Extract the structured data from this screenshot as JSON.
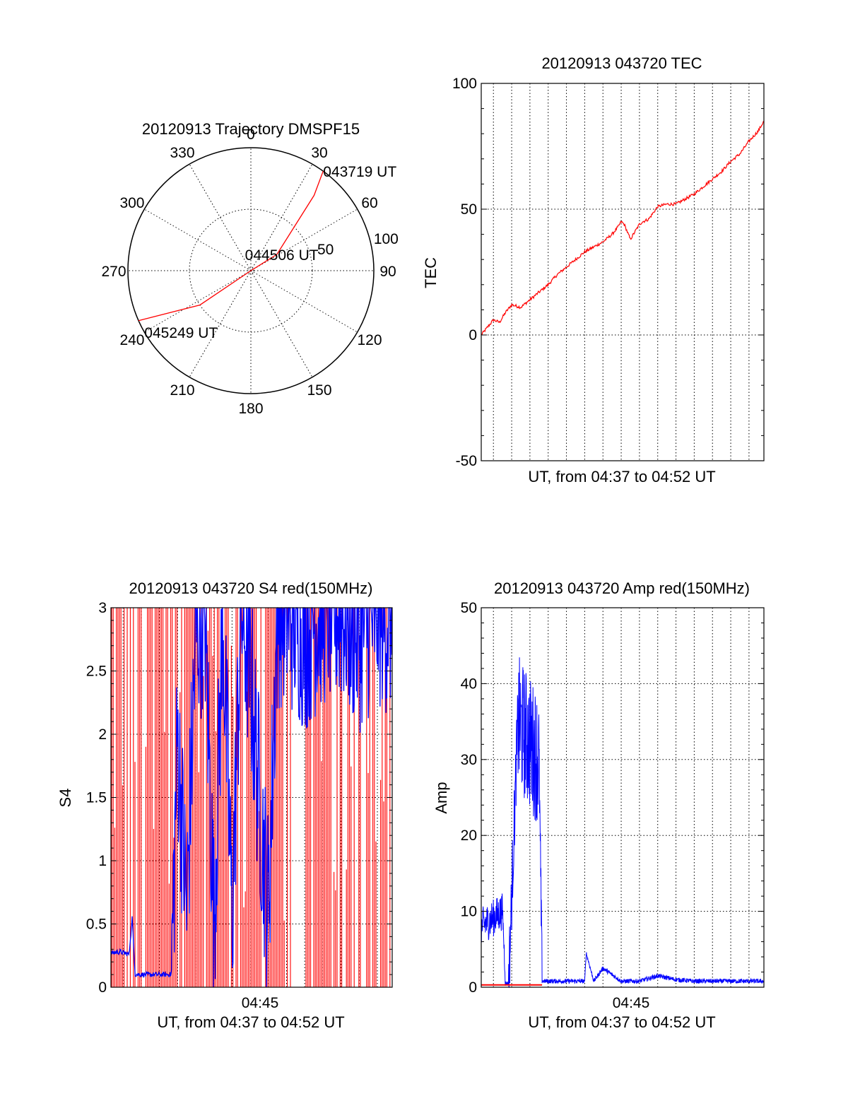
{
  "colors": {
    "red": "#ff0000",
    "blue": "#0000ff",
    "axis": "#000000",
    "grid": "#000000"
  },
  "chart_data": [
    {
      "type": "polar",
      "title": "20120913 Trajectory DMSPF15",
      "angle_ticks": [
        "0",
        "30",
        "60",
        "90",
        "120",
        "150",
        "180",
        "210",
        "240",
        "270",
        "300",
        "330"
      ],
      "radius_ticks": [
        "50",
        "100"
      ],
      "radius_max": 100,
      "grid": true,
      "series": [
        {
          "color": "red",
          "points": [
            [
              36,
              100
            ],
            [
              40,
              80
            ],
            [
              58,
              25
            ],
            [
              180,
              0
            ],
            [
              236,
              50
            ],
            [
              246,
              100
            ]
          ]
        }
      ],
      "annotations": [
        {
          "text": "043719 UT",
          "angle": 36,
          "radius": 100
        },
        {
          "text": "044506 UT",
          "angle": 340,
          "radius": 14
        },
        {
          "text": "045249 UT",
          "angle": 240,
          "radius": 100
        }
      ]
    },
    {
      "type": "line",
      "title": "20120913 043720 TEC",
      "xlabel": "UT, from 04:37 to 04:52 UT",
      "ylabel": "TEC",
      "xlim": [
        "04:37:20",
        "04:52:49"
      ],
      "ylim": [
        -50,
        100
      ],
      "yticks": [
        "100",
        "50",
        "0",
        "-50"
      ],
      "grid": true,
      "series": [
        {
          "color": "red",
          "x": [
            "04:37:20",
            "04:37:40",
            "04:38:00",
            "04:38:20",
            "04:38:40",
            "04:39:00",
            "04:39:30",
            "04:40:00",
            "04:40:30",
            "04:41:00",
            "04:41:30",
            "04:42:00",
            "04:42:30",
            "04:43:00",
            "04:43:30",
            "04:44:00",
            "04:44:30",
            "04:44:50",
            "04:45:00",
            "04:45:10",
            "04:45:30",
            "04:46:00",
            "04:46:10",
            "04:46:30",
            "04:47:00",
            "04:47:30",
            "04:48:00",
            "04:48:30",
            "04:49:00",
            "04:49:30",
            "04:50:00",
            "04:50:30",
            "04:51:00",
            "04:51:30",
            "04:52:00",
            "04:52:30",
            "04:52:49"
          ],
          "y": [
            0,
            3,
            6,
            5,
            9,
            12,
            11,
            14,
            17,
            20,
            24,
            27,
            30,
            33,
            35,
            37,
            40,
            43,
            45,
            44,
            38,
            44,
            45,
            46,
            51,
            52,
            52,
            54,
            56,
            59,
            62,
            65,
            69,
            72,
            77,
            81,
            85
          ]
        }
      ]
    },
    {
      "type": "line",
      "title": "20120913 043720 S4 red(150MHz)",
      "xlabel": "UT, from 04:37 to 04:52 UT",
      "ylabel": "S4",
      "xtick_label": "04:45",
      "xlim": [
        "04:37:20",
        "04:52:49"
      ],
      "ylim": [
        0,
        3
      ],
      "yticks": [
        "3",
        "2.5",
        "2",
        "1.5",
        "1",
        "0.5",
        "0"
      ],
      "grid": true,
      "series": [
        {
          "color": "red",
          "name": "",
          "style": "dense spikes 0–3 across full span, gaps near 04:46:30"
        },
        {
          "color": "blue",
          "x": [
            "04:37:20",
            "04:37:50",
            "04:38:20",
            "04:38:30",
            "04:38:40",
            "04:39:00",
            "04:40:00",
            "04:40:40",
            "04:41:00",
            "04:41:30",
            "04:42:00",
            "04:42:30",
            "04:43:00",
            "04:43:30",
            "04:44:00",
            "04:44:30",
            "04:45:00",
            "04:45:30",
            "04:46:00",
            "04:46:30",
            "04:47:00",
            "04:48:00",
            "04:49:00",
            "04:50:00",
            "04:51:00",
            "04:52:00",
            "04:52:49"
          ],
          "y": [
            0.27,
            0.28,
            0.26,
            0.55,
            0.1,
            0.1,
            0.1,
            0.1,
            2.0,
            0.6,
            2.8,
            3.0,
            0.5,
            2.9,
            0.55,
            3.0,
            2.5,
            1.5,
            0.6,
            3.0,
            3.0,
            2.8,
            3.0,
            3.0,
            2.8,
            3.0,
            2.9
          ]
        }
      ]
    },
    {
      "type": "line",
      "title": "20120913 043720 Amp red(150MHz)",
      "xlabel": "UT, from 04:37 to 04:52 UT",
      "ylabel": "Amp",
      "xtick_label": "04:45",
      "xlim": [
        "04:37:20",
        "04:52:49"
      ],
      "ylim": [
        0,
        50
      ],
      "yticks": [
        "50",
        "40",
        "30",
        "20",
        "10",
        "0"
      ],
      "grid": true,
      "series": [
        {
          "color": "blue",
          "x": [
            "04:37:20",
            "04:38:30",
            "04:38:40",
            "04:38:50",
            "04:39:20",
            "04:40:30",
            "04:40:40",
            "04:41:00",
            "04:43:00",
            "04:43:05",
            "04:43:30",
            "04:44:00",
            "04:45:00",
            "04:46:00",
            "04:47:00",
            "04:48:00",
            "04:49:00",
            "04:50:00",
            "04:51:00",
            "04:52:00",
            "04:52:49"
          ],
          "y": [
            8,
            10,
            0.5,
            0.5,
            35,
            30,
            0.8,
            0.8,
            0.8,
            4.5,
            0.8,
            2.5,
            0.8,
            0.8,
            1.5,
            1.0,
            0.8,
            0.8,
            0.8,
            0.8,
            0.8
          ]
        },
        {
          "color": "red",
          "x": [
            "04:37:20",
            "04:40:40"
          ],
          "y": [
            0.3,
            0.3
          ]
        }
      ]
    }
  ]
}
